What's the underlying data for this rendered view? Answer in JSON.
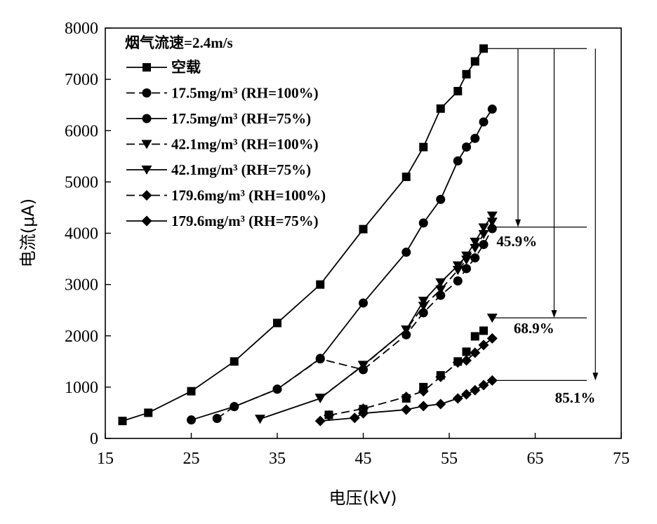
{
  "chart_data": {
    "type": "line",
    "title": "",
    "xlabel": "电压(kV)",
    "ylabel": "电流(μA)",
    "xlim": [
      15,
      75
    ],
    "ylim": [
      0,
      8000
    ],
    "xticks": [
      15,
      25,
      35,
      45,
      55,
      65,
      75
    ],
    "yticks": [
      0,
      1000,
      2000,
      3000,
      4000,
      5000,
      6000,
      7000,
      8000
    ],
    "grid": false,
    "legend_title": "烟气流速=2.4m/s",
    "legend_position": "top-left",
    "series": [
      {
        "name": "空载",
        "marker": "square",
        "dash": false,
        "x": [
          17,
          20,
          25,
          30,
          35,
          40,
          45,
          50,
          52,
          54,
          56,
          57,
          58,
          59
        ],
        "y": [
          340,
          500,
          920,
          1500,
          2250,
          3000,
          4080,
          5100,
          5680,
          6430,
          6770,
          7100,
          7350,
          7600
        ]
      },
      {
        "name": "17.5mg/m³ (RH=100%)",
        "marker": "circle",
        "dash": true,
        "x": [
          28,
          30,
          35,
          40,
          45,
          50,
          52,
          54,
          56,
          57,
          58,
          59,
          60
        ],
        "y": [
          390,
          620,
          960,
          1550,
          1340,
          2020,
          2450,
          2790,
          3070,
          3310,
          3520,
          3780,
          4090
        ]
      },
      {
        "name": "17.5mg/m³ (RH=75%)",
        "marker": "circle",
        "dash": false,
        "x": [
          25,
          30,
          35,
          40,
          45,
          50,
          52,
          54,
          56,
          57,
          58,
          59,
          60
        ],
        "y": [
          360,
          620,
          960,
          1560,
          2640,
          3630,
          4200,
          4660,
          5410,
          5680,
          5850,
          6170,
          6420
        ]
      },
      {
        "name": "42.1mg/m³ (RH=100%)",
        "marker": "triangle-down",
        "dash": true,
        "x": [
          40,
          45,
          50,
          52,
          54,
          56,
          57,
          58,
          59,
          60
        ],
        "y": [
          790,
          1420,
          2120,
          2580,
          2900,
          3280,
          3480,
          3710,
          3980,
          4220
        ]
      },
      {
        "name": "42.1mg/m³ (RH=75%)",
        "marker": "triangle-down",
        "dash": false,
        "x": [
          33,
          40,
          45,
          50,
          52,
          54,
          56,
          57,
          58,
          59,
          60
        ],
        "y": [
          380,
          780,
          1430,
          2120,
          2680,
          3040,
          3370,
          3560,
          3830,
          4110,
          4340
        ]
      },
      {
        "name": "179.6mg/m³ (RH=100%)",
        "marker": "diamond",
        "dash": true,
        "x": [
          41,
          45,
          50,
          52,
          54,
          56,
          57,
          58,
          59,
          60
        ],
        "y": [
          450,
          580,
          810,
          920,
          1200,
          1480,
          1520,
          1670,
          1820,
          1950
        ]
      },
      {
        "name": "179.6mg/m³ (RH=75%)",
        "marker": "diamond",
        "dash": false,
        "x": [
          40,
          44,
          45,
          50,
          52,
          54,
          56,
          57,
          58,
          59,
          60
        ],
        "y": [
          340,
          400,
          490,
          560,
          630,
          670,
          780,
          860,
          940,
          1040,
          1130
        ]
      },
      {
        "name": "",
        "marker": "square",
        "dash": false,
        "hide_line": true,
        "x": [
          41,
          45,
          50,
          52,
          54,
          56,
          57,
          58,
          59
        ],
        "y": [
          460,
          570,
          780,
          1000,
          1230,
          1500,
          1690,
          1990,
          2100
        ]
      },
      {
        "name": "",
        "marker": "triangle-down",
        "dash": false,
        "hide_line": true,
        "x": [
          60
        ],
        "y": [
          2350
        ]
      }
    ],
    "annotations": [
      {
        "text": "45.9%",
        "x": 60.5,
        "y": 3750
      },
      {
        "text": "68.9%",
        "x": 62.5,
        "y": 2050
      },
      {
        "text": "85.1%",
        "x": 67.3,
        "y": 700
      }
    ],
    "reference_lines": [
      {
        "y": 7600,
        "x_from": 59,
        "x_to": 71
      },
      {
        "y": 4120,
        "x_from": 60,
        "x_to": 71
      },
      {
        "y": 2350,
        "x_from": 60,
        "x_to": 71
      },
      {
        "y": 1130,
        "x_from": 60,
        "x_to": 71
      }
    ],
    "arrows": [
      {
        "x": 63,
        "y_from": 7600,
        "y_to": 4120
      },
      {
        "x": 67.2,
        "y_from": 7600,
        "y_to": 2350
      },
      {
        "x": 72,
        "y_from": 7600,
        "y_to": 1130
      }
    ]
  }
}
